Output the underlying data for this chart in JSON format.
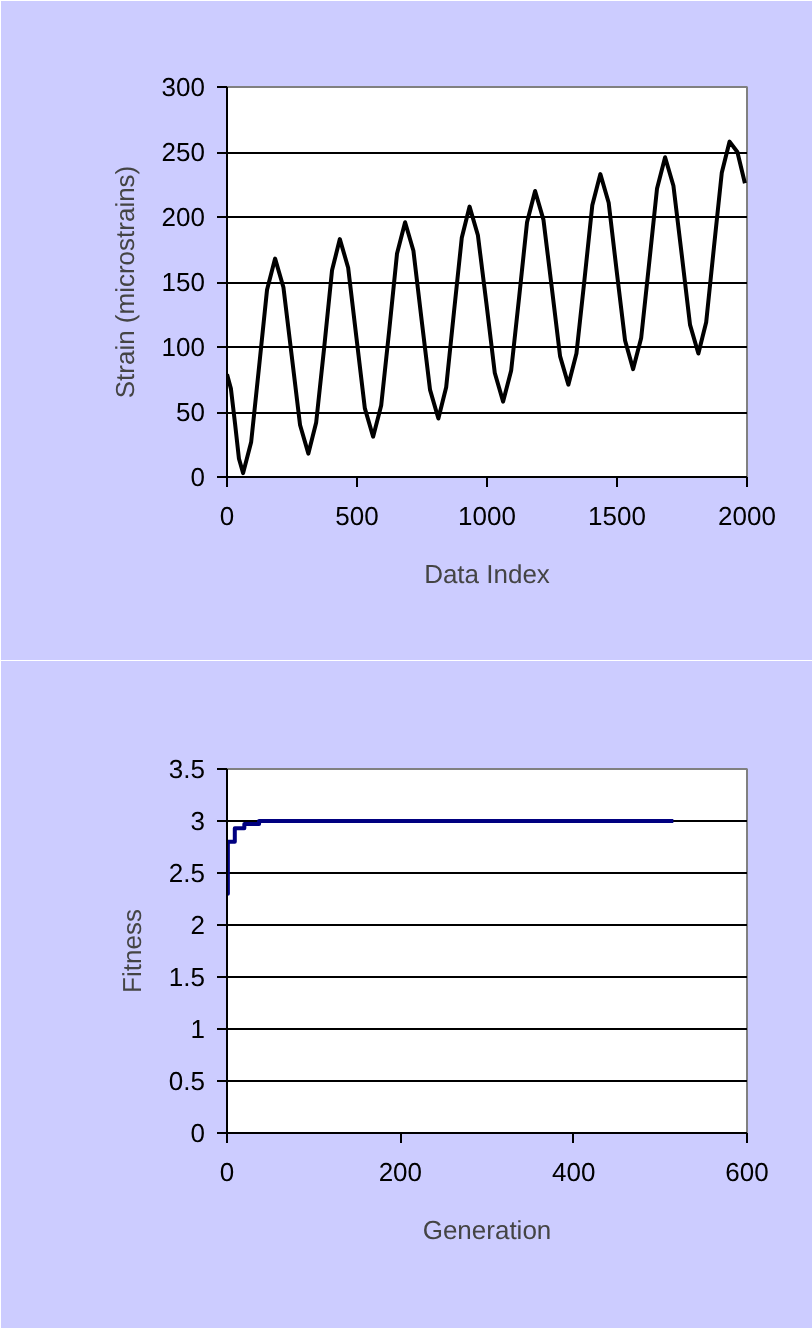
{
  "chart_data": [
    {
      "type": "line",
      "xlabel": "Data Index",
      "ylabel": "Strain (microstrains)",
      "xlim": [
        0,
        2000
      ],
      "ylim": [
        0,
        300
      ],
      "xticks": [
        0,
        500,
        1000,
        1500,
        2000
      ],
      "yticks": [
        0,
        50,
        100,
        150,
        200,
        250,
        300
      ],
      "grid": "y",
      "line_style": "solid",
      "series": [
        {
          "color": "#000000",
          "x": [
            0,
            15,
            31,
            46,
            62,
            93,
            124,
            154,
            185,
            217,
            249,
            281,
            313,
            343,
            374,
            404,
            434,
            466,
            498,
            530,
            562,
            593,
            624,
            654,
            685,
            717,
            749,
            781,
            813,
            843,
            873,
            903,
            933,
            965,
            998,
            1030,
            1062,
            1093,
            1124,
            1154,
            1185,
            1217,
            1249,
            1281,
            1313,
            1344,
            1375,
            1405,
            1436,
            1468,
            1499,
            1531,
            1562,
            1593,
            1624,
            1654,
            1685,
            1717,
            1749,
            1781,
            1813,
            1843,
            1873,
            1903,
            1933,
            1963,
            1992
          ],
          "values": [
            79,
            68,
            41,
            14,
            3,
            27,
            86,
            144,
            168,
            146,
            93,
            40,
            18,
            42,
            100,
            159,
            183,
            161,
            107,
            53,
            31,
            55,
            113,
            172,
            196,
            174,
            120,
            67,
            45,
            69,
            127,
            184,
            208,
            186,
            133,
            80,
            58,
            82,
            139,
            196,
            220,
            198,
            146,
            93,
            71,
            95,
            152,
            209,
            233,
            211,
            158,
            105,
            83,
            107,
            165,
            222,
            246,
            224,
            171,
            117,
            95,
            119,
            177,
            234,
            258,
            250,
            226
          ]
        }
      ]
    },
    {
      "type": "step",
      "xlabel": "Generation",
      "ylabel": "Fitness",
      "xlim": [
        0,
        600
      ],
      "ylim": [
        0,
        3.5
      ],
      "xticks": [
        0,
        200,
        400,
        600
      ],
      "yticks": [
        0,
        0.5,
        1,
        1.5,
        2,
        2.5,
        3,
        3.5
      ],
      "grid": "y",
      "line_style": "solid",
      "series": [
        {
          "color": "#000080",
          "x": [
            0,
            1,
            9,
            20,
            37,
            515
          ],
          "values": [
            2.3,
            2.8,
            2.93,
            2.97,
            3.0,
            3.0
          ]
        }
      ]
    }
  ]
}
